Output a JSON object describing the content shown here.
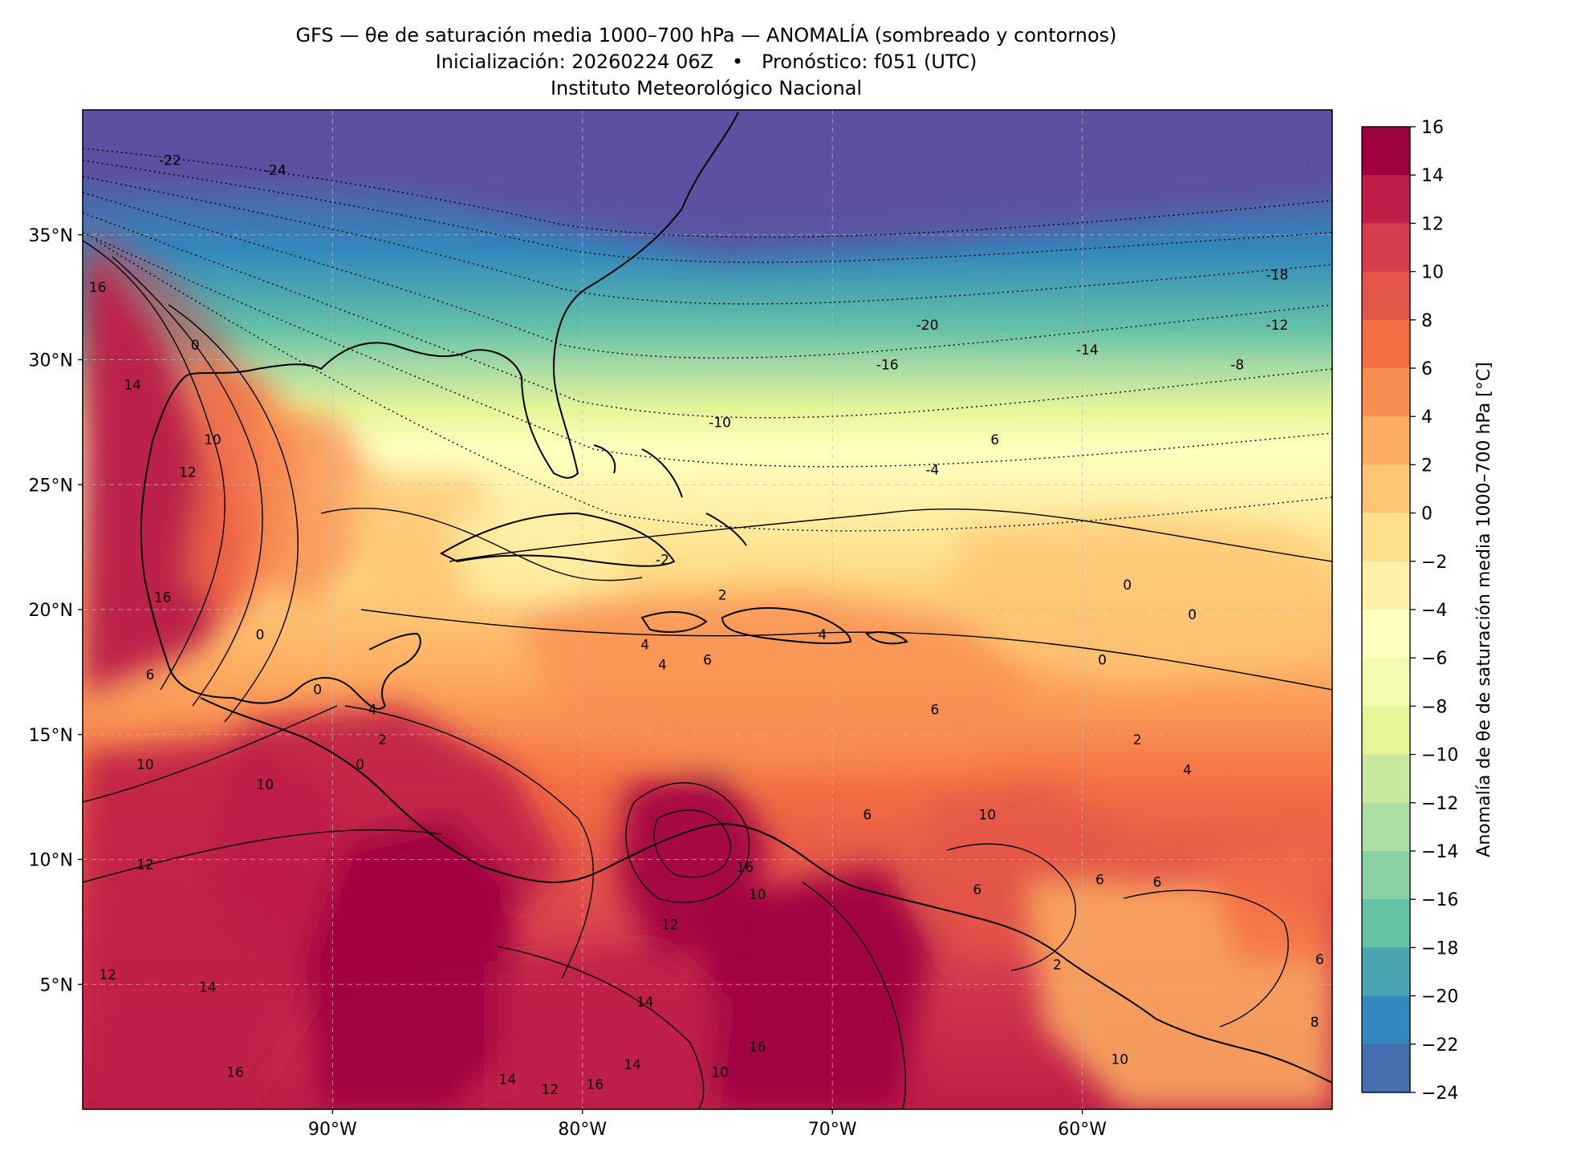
{
  "title": {
    "line1": "GFS — θe de saturación media 1000–700 hPa — ANOMALÍA (sombreado y contornos)",
    "line2": "Inicialización: 20260224 06Z   •   Pronóstico: f051 (UTC)",
    "line3": "Instituto Meteorológico Nacional"
  },
  "map": {
    "lon_range": [
      -100,
      -50
    ],
    "lat_range": [
      0,
      40
    ],
    "lat_ticks": [
      {
        "value": 35,
        "label": "35°N"
      },
      {
        "value": 30,
        "label": "30°N"
      },
      {
        "value": 25,
        "label": "25°N"
      },
      {
        "value": 20,
        "label": "20°N"
      },
      {
        "value": 15,
        "label": "15°N"
      },
      {
        "value": 10,
        "label": "10°N"
      },
      {
        "value": 5,
        "label": "5°N"
      }
    ],
    "lon_ticks": [
      {
        "value": -90,
        "label": "90°W"
      },
      {
        "value": -80,
        "label": "80°W"
      },
      {
        "value": -70,
        "label": "70°W"
      },
      {
        "value": -60,
        "label": "60°W"
      }
    ],
    "contour_labels": [
      {
        "text": "-22",
        "lon": -96.5,
        "lat": 38.0
      },
      {
        "text": "-24",
        "lon": -92.3,
        "lat": 37.6
      },
      {
        "text": "-20",
        "lon": -66.2,
        "lat": 31.4
      },
      {
        "text": "-18",
        "lon": -52.2,
        "lat": 33.4
      },
      {
        "text": "-12",
        "lon": -52.2,
        "lat": 31.4
      },
      {
        "text": "-16",
        "lon": -67.8,
        "lat": 29.8
      },
      {
        "text": "-14",
        "lon": -59.8,
        "lat": 30.4
      },
      {
        "text": "-8",
        "lon": -53.8,
        "lat": 29.8
      },
      {
        "text": "-10",
        "lon": -74.5,
        "lat": 27.5
      },
      {
        "text": "6",
        "lon": -63.5,
        "lat": 26.8
      },
      {
        "text": "-4",
        "lon": -66.0,
        "lat": 25.6
      },
      {
        "text": "-2",
        "lon": -76.8,
        "lat": 22.0
      },
      {
        "text": "2",
        "lon": -74.4,
        "lat": 20.6
      },
      {
        "text": "0",
        "lon": -58.2,
        "lat": 21.0
      },
      {
        "text": "0",
        "lon": -55.6,
        "lat": 19.8
      },
      {
        "text": "0",
        "lon": -92.9,
        "lat": 19.0
      },
      {
        "text": "4",
        "lon": -70.4,
        "lat": 19.0
      },
      {
        "text": "4",
        "lon": -77.5,
        "lat": 18.6
      },
      {
        "text": "6",
        "lon": -75.0,
        "lat": 18.0
      },
      {
        "text": "4",
        "lon": -76.8,
        "lat": 17.8
      },
      {
        "text": "0",
        "lon": -59.2,
        "lat": 18.0
      },
      {
        "text": "0",
        "lon": -90.6,
        "lat": 16.8
      },
      {
        "text": "4",
        "lon": -88.4,
        "lat": 16.0
      },
      {
        "text": "6",
        "lon": -65.9,
        "lat": 16.0
      },
      {
        "text": "2",
        "lon": -57.8,
        "lat": 14.8
      },
      {
        "text": "2",
        "lon": -88.0,
        "lat": 14.8
      },
      {
        "text": "0",
        "lon": -88.9,
        "lat": 13.8
      },
      {
        "text": "4",
        "lon": -55.8,
        "lat": 13.6
      },
      {
        "text": "10",
        "lon": -97.5,
        "lat": 13.8
      },
      {
        "text": "10",
        "lon": -92.7,
        "lat": 13.0
      },
      {
        "text": "10",
        "lon": -63.8,
        "lat": 11.8
      },
      {
        "text": "6",
        "lon": -68.6,
        "lat": 11.8
      },
      {
        "text": "16",
        "lon": -73.5,
        "lat": 9.7
      },
      {
        "text": "12",
        "lon": -97.5,
        "lat": 9.8
      },
      {
        "text": "6",
        "lon": -59.3,
        "lat": 9.2
      },
      {
        "text": "6",
        "lon": -57.0,
        "lat": 9.1
      },
      {
        "text": "6",
        "lon": -64.2,
        "lat": 8.8
      },
      {
        "text": "10",
        "lon": -73.0,
        "lat": 8.6
      },
      {
        "text": "12",
        "lon": -76.5,
        "lat": 7.4
      },
      {
        "text": "16",
        "lon": -96.8,
        "lat": 20.5
      },
      {
        "text": "16",
        "lon": -99.4,
        "lat": 32.9
      },
      {
        "text": "14",
        "lon": -98.0,
        "lat": 29.0
      },
      {
        "text": "0",
        "lon": -95.5,
        "lat": 30.6
      },
      {
        "text": "10",
        "lon": -94.8,
        "lat": 26.8
      },
      {
        "text": "12",
        "lon": -95.8,
        "lat": 25.5
      },
      {
        "text": "6",
        "lon": -97.3,
        "lat": 17.4
      },
      {
        "text": "2",
        "lon": -61.0,
        "lat": 5.8
      },
      {
        "text": "6",
        "lon": -50.5,
        "lat": 6.0
      },
      {
        "text": "12",
        "lon": -99.0,
        "lat": 5.4
      },
      {
        "text": "14",
        "lon": -95.0,
        "lat": 4.9
      },
      {
        "text": "14",
        "lon": -77.5,
        "lat": 4.3
      },
      {
        "text": "16",
        "lon": -73.0,
        "lat": 2.5
      },
      {
        "text": "14",
        "lon": -83.0,
        "lat": 1.2
      },
      {
        "text": "12",
        "lon": -81.3,
        "lat": 0.8
      },
      {
        "text": "16",
        "lon": -79.5,
        "lat": 1.0
      },
      {
        "text": "14",
        "lon": -78.0,
        "lat": 1.8
      },
      {
        "text": "10",
        "lon": -74.5,
        "lat": 1.5
      },
      {
        "text": "16",
        "lon": -93.9,
        "lat": 1.5
      },
      {
        "text": "10",
        "lon": -58.5,
        "lat": 2.0
      },
      {
        "text": "8",
        "lon": -50.7,
        "lat": 3.5
      }
    ]
  },
  "colorbar": {
    "label": "Anomalía de θe de saturación media 1000–700 hPa [°C]",
    "ticks": [
      "16",
      "14",
      "12",
      "10",
      "8",
      "6",
      "4",
      "2",
      "0",
      "−2",
      "−4",
      "−6",
      "−8",
      "−10",
      "−12",
      "−14",
      "−16",
      "−18",
      "−20",
      "−22",
      "−24"
    ],
    "colors": [
      "#9e0142",
      "#be1e48",
      "#d53e4f",
      "#e45649",
      "#f46d43",
      "#f88d51",
      "#fdae61",
      "#fec574",
      "#fee08b",
      "#fef0a6",
      "#ffffbf",
      "#f4faaf",
      "#e6f598",
      "#c7e89e",
      "#abdda4",
      "#89d0a4",
      "#66c2a5",
      "#4aa4b1",
      "#3288bd",
      "#4470b1",
      "#5e4fa2"
    ]
  }
}
